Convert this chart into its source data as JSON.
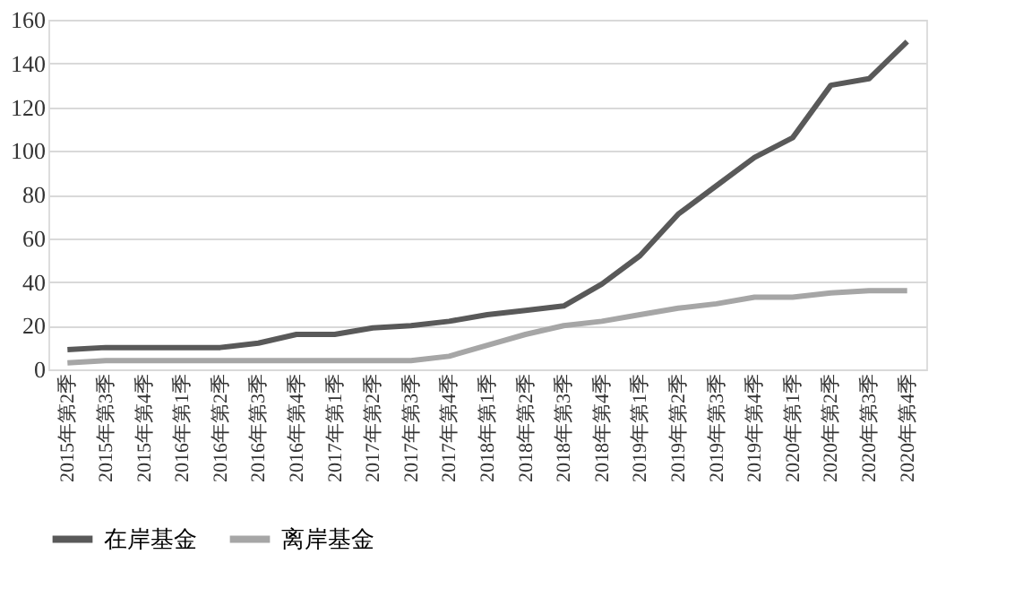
{
  "chart_data": {
    "type": "line",
    "categories": [
      "2015年第2季",
      "2015年第3季",
      "2015年第4季",
      "2016年第1季",
      "2016年第2季",
      "2016年第3季",
      "2016年第4季",
      "2017年第1季",
      "2017年第2季",
      "2017年第3季",
      "2017年第4季",
      "2018年第1季",
      "2018年第2季",
      "2018年第3季",
      "2018年第4季",
      "2019年第1季",
      "2019年第2季",
      "2019年第3季",
      "2019年第4季",
      "2020年第1季",
      "2020年第2季",
      "2020年第3季",
      "2020年第4季"
    ],
    "series": [
      {
        "name": "在岸基金",
        "color": "#595959",
        "values": [
          9,
          10,
          10,
          10,
          10,
          12,
          16,
          16,
          19,
          20,
          22,
          25,
          27,
          29,
          39,
          52,
          71,
          84,
          97,
          106,
          130,
          133,
          150
        ]
      },
      {
        "name": "离岸基金",
        "color": "#a6a6a6",
        "values": [
          3,
          4,
          4,
          4,
          4,
          4,
          4,
          4,
          4,
          4,
          6,
          11,
          16,
          20,
          22,
          25,
          28,
          30,
          33,
          33,
          35,
          36,
          36
        ]
      }
    ],
    "ylim": [
      0,
      160
    ],
    "yticks": [
      0,
      20,
      40,
      60,
      80,
      100,
      120,
      140,
      160
    ],
    "grid": "y",
    "legend": "bottom",
    "line_style": "solid",
    "marker": "none"
  }
}
